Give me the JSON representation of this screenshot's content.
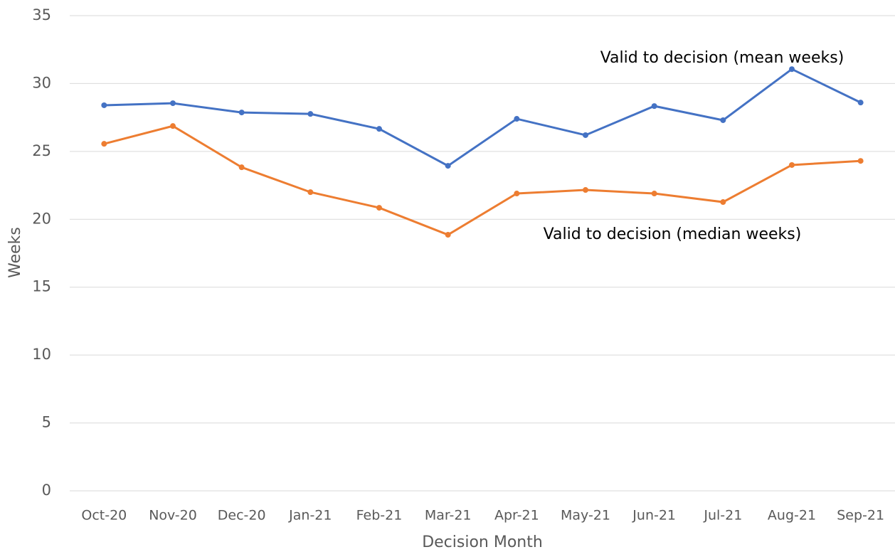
{
  "chart_data": {
    "type": "line",
    "xlabel": "Decision Month",
    "ylabel": "Weeks",
    "categories": [
      "Oct-20",
      "Nov-20",
      "Dec-20",
      "Jan-21",
      "Feb-21",
      "Mar-21",
      "Apr-21",
      "May-21",
      "Jun-21",
      "Jul-21",
      "Aug-21",
      "Sep-21"
    ],
    "series": [
      {
        "name": "Valid to decision (mean weeks)",
        "color": "#4472c4",
        "values": [
          28.4,
          28.55,
          27.87,
          27.76,
          26.66,
          23.94,
          27.4,
          26.2,
          28.34,
          27.3,
          31.06,
          28.6
        ]
      },
      {
        "name": "Valid to decision (median weeks)",
        "color": "#ed7d31",
        "values": [
          25.56,
          26.87,
          23.83,
          22.0,
          20.85,
          18.86,
          21.9,
          22.16,
          21.9,
          21.27,
          24.0,
          24.3
        ]
      }
    ],
    "ylim": [
      0,
      35
    ],
    "yticks": [
      0,
      5,
      10,
      15,
      20,
      25,
      30,
      35
    ],
    "grid": true
  }
}
